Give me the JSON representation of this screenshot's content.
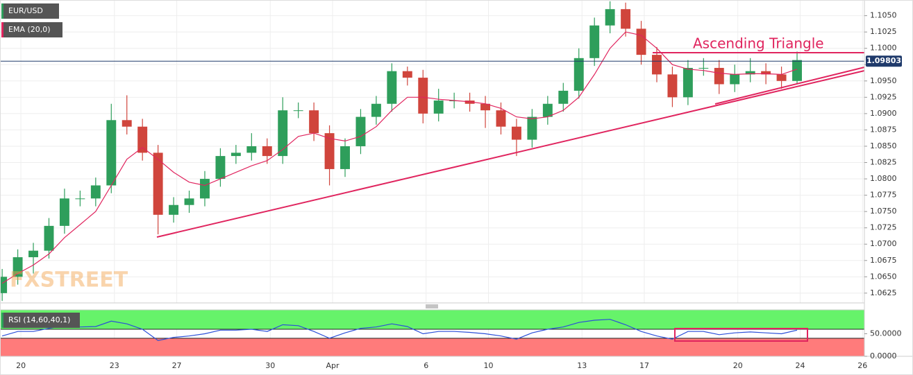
{
  "chart_data": {
    "type": "candlestick",
    "symbol_label": "EUR/USD",
    "indicator_label": "EMA (20,0)",
    "watermark": "FXSTREET",
    "annotation": "Ascending Triangle",
    "up_color": "#2e9e5b",
    "down_color": "#d0453c",
    "x": [
      -0.6,
      -0.1,
      0.4,
      0.9,
      1.4,
      1.9,
      2.4,
      2.9,
      3.4,
      3.9,
      4.4,
      4.9,
      5.4,
      5.9,
      6.4,
      6.9,
      7.4,
      7.9,
      8.4,
      8.9,
      9.4,
      9.9,
      10.4,
      10.9,
      11.4,
      11.9,
      12.4,
      12.9,
      13.4,
      13.9,
      14.4,
      14.9,
      15.4,
      15.9,
      16.4,
      16.9,
      17.4,
      17.9,
      18.4,
      18.9,
      19.4,
      19.9,
      20.4,
      20.9,
      21.4,
      21.9,
      22.4,
      22.9,
      23.4,
      23.9,
      24.4,
      24.9
    ],
    "open": [
      1.0625,
      1.065,
      1.068,
      1.069,
      1.0728,
      1.077,
      1.077,
      1.079,
      1.089,
      1.088,
      1.084,
      1.0745,
      1.076,
      1.077,
      1.08,
      1.0835,
      1.084,
      1.085,
      1.0835,
      1.0905,
      1.0905,
      1.087,
      1.0815,
      1.085,
      1.0895,
      1.0915,
      1.0965,
      1.0955,
      1.09,
      1.092,
      1.092,
      1.0915,
      1.0905,
      1.088,
      1.086,
      1.0895,
      1.0915,
      1.0935,
      1.0985,
      1.1035,
      1.106,
      1.103,
      1.099,
      1.096,
      1.0925,
      1.097,
      1.097,
      1.0945,
      1.096,
      1.0965,
      1.096,
      1.095
    ],
    "high": [
      1.0662,
      1.0692,
      1.0702,
      1.074,
      1.0785,
      1.0782,
      1.0802,
      1.0915,
      1.0928,
      1.0892,
      1.0852,
      1.0772,
      1.0782,
      1.0812,
      1.0847,
      1.0852,
      1.087,
      1.0862,
      1.0925,
      1.0917,
      1.0917,
      1.0882,
      1.0862,
      1.0907,
      1.0927,
      1.0977,
      1.0972,
      1.0967,
      1.0938,
      1.0932,
      1.0932,
      1.0927,
      1.0917,
      1.0892,
      1.0907,
      1.0927,
      1.0947,
      1.1,
      1.1047,
      1.1072,
      1.107,
      1.1042,
      1.1002,
      1.0972,
      1.0982,
      1.0985,
      1.0982,
      1.0975,
      1.0985,
      1.0977,
      1.0972,
      1.0995
    ],
    "low": [
      1.0613,
      1.0638,
      1.0655,
      1.0678,
      1.0716,
      1.0758,
      1.0758,
      1.0778,
      1.0868,
      1.0828,
      1.0715,
      1.0733,
      1.0748,
      1.0758,
      1.0788,
      1.0823,
      1.0828,
      1.0823,
      1.0823,
      1.0893,
      1.0858,
      1.079,
      1.0803,
      1.0838,
      1.0883,
      1.0903,
      1.0943,
      1.0885,
      1.0888,
      1.0908,
      1.0903,
      1.0878,
      1.0868,
      1.0835,
      1.0848,
      1.0883,
      1.0903,
      1.0923,
      1.0973,
      1.1023,
      1.1018,
      1.0975,
      1.0948,
      1.091,
      1.0913,
      1.0958,
      1.093,
      1.0933,
      1.0948,
      1.0945,
      1.0938,
      1.0945
    ],
    "close": [
      1.065,
      1.068,
      1.069,
      1.0728,
      1.077,
      1.077,
      1.079,
      1.089,
      1.088,
      1.084,
      1.0745,
      1.076,
      1.077,
      1.08,
      1.0835,
      1.084,
      1.085,
      1.0835,
      1.0905,
      1.0905,
      1.087,
      1.0815,
      1.085,
      1.0895,
      1.0915,
      1.0965,
      1.0955,
      1.09,
      1.092,
      1.092,
      1.0915,
      1.0905,
      1.088,
      1.086,
      1.0895,
      1.0915,
      1.0935,
      1.0985,
      1.1035,
      1.106,
      1.103,
      1.099,
      1.096,
      1.0925,
      1.097,
      1.097,
      1.0945,
      1.096,
      1.0965,
      1.096,
      1.095,
      1.0982
    ],
    "ema": {
      "color": "#e0245e",
      "values": [
        1.064,
        1.0655,
        1.0668,
        1.0685,
        1.071,
        1.073,
        1.075,
        1.079,
        1.083,
        1.0848,
        1.083,
        1.081,
        1.0795,
        1.079,
        1.08,
        1.081,
        1.082,
        1.0828,
        1.0845,
        1.0865,
        1.087,
        1.0862,
        1.0858,
        1.0865,
        1.088,
        1.0905,
        1.0925,
        1.0925,
        1.0922,
        1.092,
        1.0918,
        1.0915,
        1.0908,
        1.0895,
        1.0892,
        1.0895,
        1.0905,
        1.0925,
        1.096,
        1.1,
        1.1025,
        1.102,
        1.1,
        1.0975,
        1.0968,
        1.0966,
        1.0962,
        1.096,
        1.0961,
        1.0961,
        1.096,
        1.0968
      ]
    },
    "last_price": 1.09803,
    "xlim": [
      -0.67,
      27.06
    ],
    "xticks": [
      {
        "value": 0,
        "label": "20"
      },
      {
        "value": 3,
        "label": "23"
      },
      {
        "value": 5,
        "label": "27"
      },
      {
        "value": 8,
        "label": "30"
      },
      {
        "value": 10,
        "label": "Apr"
      },
      {
        "value": 13,
        "label": "6"
      },
      {
        "value": 15,
        "label": "10"
      },
      {
        "value": 18,
        "label": "13"
      },
      {
        "value": 20,
        "label": "17"
      },
      {
        "value": 23,
        "label": "20"
      },
      {
        "value": 25,
        "label": "24"
      },
      {
        "value": 27,
        "label": "26"
      }
    ],
    "ylim": [
      1.061,
      1.1074
    ],
    "yticks": [
      1.0625,
      {
        "value": 1.065,
        "label": "1.0650"
      },
      1.0675,
      {
        "value": 1.07,
        "label": "1.0700"
      },
      1.0725,
      {
        "value": 1.075,
        "label": "1.0750"
      },
      1.0775,
      {
        "value": 1.08,
        "label": "1.0800"
      },
      1.0825,
      {
        "value": 1.085,
        "label": "1.0850"
      },
      1.0875,
      {
        "value": 1.09,
        "label": "1.0900"
      },
      1.0925,
      {
        "value": 1.095,
        "label": "1.0950"
      },
      1.0975,
      {
        "value": 1.1,
        "label": "1.1000"
      },
      1.1025,
      {
        "value": 1.105,
        "label": "1.1050"
      }
    ],
    "grid": true,
    "rsi": {
      "label": "RSI (14,60,40,1)",
      "color": "#2b4fd8",
      "upper": 60,
      "lower": 40,
      "values": [
        45,
        55,
        55,
        62,
        68,
        65,
        66,
        78,
        72,
        60,
        35,
        42,
        45,
        50,
        58,
        58,
        60,
        55,
        70,
        68,
        55,
        40,
        52,
        62,
        65,
        72,
        66,
        50,
        55,
        55,
        53,
        50,
        45,
        38,
        52,
        60,
        65,
        75,
        80,
        82,
        70,
        55,
        45,
        38,
        55,
        55,
        48,
        52,
        54,
        52,
        50,
        58
      ],
      "ylim": [
        0,
        103
      ],
      "yticks": [
        {
          "value": 50,
          "label": "50.0000"
        },
        {
          "value": 0,
          "label": "0.0000"
        }
      ]
    }
  }
}
